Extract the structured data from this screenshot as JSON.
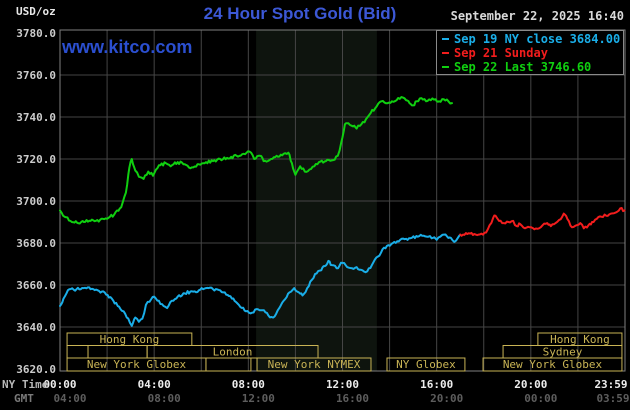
{
  "header": {
    "units": "USD/oz",
    "title": "24 Hour Spot Gold (Bid)",
    "datetime": "September 22, 2025 16:40",
    "watermark": "www.kitco.com"
  },
  "legend": {
    "items": [
      {
        "label": "Sep 19 NY close 3684.00",
        "color": "#1aaee8"
      },
      {
        "label": "Sep 21 Sunday",
        "color": "#f21d1d"
      },
      {
        "label": "Sep 22 Last 3746.60",
        "color": "#10cf10"
      }
    ]
  },
  "axes": {
    "ny_row_label": "NY Time",
    "gmt_row_label": "GMT",
    "y_ticks": [
      {
        "v": 3780,
        "label": "3780.0"
      },
      {
        "v": 3760,
        "label": "3760.0"
      },
      {
        "v": 3740,
        "label": "3740.0"
      },
      {
        "v": 3720,
        "label": "3720.0"
      },
      {
        "v": 3700,
        "label": "3700.0"
      },
      {
        "v": 3680,
        "label": "3680.0"
      },
      {
        "v": 3660,
        "label": "3660.0"
      },
      {
        "v": 3640,
        "label": "3640.0"
      },
      {
        "v": 3620,
        "label": "3620.0"
      }
    ],
    "x_ticks": [
      {
        "h": 0,
        "ny": "00:00",
        "gmt": "04:00"
      },
      {
        "h": 4,
        "ny": "04:00",
        "gmt": "08:00"
      },
      {
        "h": 8,
        "ny": "08:00",
        "gmt": "12:00"
      },
      {
        "h": 12,
        "ny": "12:00",
        "gmt": "16:00"
      },
      {
        "h": 16,
        "ny": "16:00",
        "gmt": "20:00"
      },
      {
        "h": 20,
        "ny": "20:00",
        "gmt": "00:00"
      },
      {
        "h": 23.983,
        "ny": "23:59",
        "gmt": "03:59"
      }
    ]
  },
  "sessions": {
    "color": "#c9b455",
    "rows": [
      {
        "boxes": [
          {
            "label": "Hong Kong",
            "start": 0.3,
            "end": 5.6
          },
          {
            "label": "Hong Kong",
            "start": 20.3,
            "end": 23.87
          }
        ]
      },
      {
        "boxes": [
          {
            "label": "",
            "start": 0.3,
            "end": 1.19
          },
          {
            "label": "",
            "start": 1.19,
            "end": 3.7
          },
          {
            "label": "London",
            "start": 3.7,
            "end": 10.96
          },
          {
            "label": "Sydney",
            "start": 18.82,
            "end": 23.87
          }
        ]
      },
      {
        "boxes": [
          {
            "label": "New York Globex",
            "start": 0.3,
            "end": 6.2
          },
          {
            "label": "",
            "start": 6.2,
            "end": 8.11
          },
          {
            "label": "New York NYMEX",
            "start": 8.37,
            "end": 13.21
          },
          {
            "label": "NY Globex",
            "start": 13.89,
            "end": 17.2
          },
          {
            "label": "New York Globex",
            "start": 17.97,
            "end": 23.87
          }
        ]
      }
    ]
  },
  "chart_data": {
    "type": "line",
    "title": "24 Hour Spot Gold (Bid)",
    "ylabel": "USD/oz",
    "xlabel": "NY Time",
    "ylim": [
      3620,
      3780
    ],
    "xlim_hours": [
      0,
      24
    ],
    "grid": true,
    "grid_color": "#454545",
    "border_color": "#7f7f7f",
    "background": "#000000",
    "nymex_band": {
      "start": 8.33,
      "end": 13.46,
      "color": "#0e140e"
    },
    "legend_position": "top-right",
    "series": [
      {
        "name": "Sep 19 NY close",
        "color": "#1aaee8",
        "close": 3684.0,
        "points": [
          [
            0,
            3650
          ],
          [
            0.15,
            3653.5
          ],
          [
            0.4,
            3658
          ],
          [
            0.7,
            3658
          ],
          [
            1.0,
            3658.5
          ],
          [
            1.3,
            3658
          ],
          [
            1.6,
            3657.5
          ],
          [
            1.9,
            3656.5
          ],
          [
            2.2,
            3653.5
          ],
          [
            2.45,
            3650
          ],
          [
            2.7,
            3647.5
          ],
          [
            2.9,
            3644
          ],
          [
            3.05,
            3640.5
          ],
          [
            3.2,
            3644.5
          ],
          [
            3.35,
            3642.5
          ],
          [
            3.5,
            3644
          ],
          [
            3.65,
            3650.5
          ],
          [
            3.8,
            3652
          ],
          [
            4.0,
            3654.5
          ],
          [
            4.2,
            3652.5
          ],
          [
            4.4,
            3650
          ],
          [
            4.55,
            3649
          ],
          [
            4.75,
            3652.5
          ],
          [
            5.0,
            3654.5
          ],
          [
            5.3,
            3656
          ],
          [
            5.6,
            3657
          ],
          [
            5.9,
            3657.5
          ],
          [
            6.2,
            3658.5
          ],
          [
            6.5,
            3658
          ],
          [
            6.8,
            3657.5
          ],
          [
            7.0,
            3656.5
          ],
          [
            7.3,
            3653.5
          ],
          [
            7.6,
            3650.5
          ],
          [
            7.9,
            3647.5
          ],
          [
            8.1,
            3646.5
          ],
          [
            8.35,
            3648.5
          ],
          [
            8.6,
            3648
          ],
          [
            8.85,
            3645.5
          ],
          [
            9.05,
            3644.5
          ],
          [
            9.25,
            3648
          ],
          [
            9.5,
            3652.5
          ],
          [
            9.75,
            3656.5
          ],
          [
            9.95,
            3658.5
          ],
          [
            10.15,
            3656.5
          ],
          [
            10.3,
            3655
          ],
          [
            10.5,
            3658.5
          ],
          [
            10.7,
            3662.5
          ],
          [
            10.9,
            3665.5
          ],
          [
            11.1,
            3667
          ],
          [
            11.25,
            3669
          ],
          [
            11.4,
            3671.5
          ],
          [
            11.55,
            3669.5
          ],
          [
            11.75,
            3668
          ],
          [
            12.0,
            3670.5
          ],
          [
            12.2,
            3668.5
          ],
          [
            12.4,
            3668
          ],
          [
            12.6,
            3668.5
          ],
          [
            12.85,
            3667
          ],
          [
            13.05,
            3666.5
          ],
          [
            13.25,
            3669.5
          ],
          [
            13.5,
            3673.5
          ],
          [
            13.7,
            3677
          ],
          [
            13.95,
            3679
          ],
          [
            14.2,
            3680.5
          ],
          [
            14.45,
            3681.5
          ],
          [
            14.7,
            3682
          ],
          [
            14.95,
            3682.5
          ],
          [
            15.2,
            3683
          ],
          [
            15.45,
            3683.5
          ],
          [
            15.65,
            3683
          ],
          [
            15.85,
            3682.5
          ],
          [
            16.0,
            3681.5
          ],
          [
            16.15,
            3683
          ],
          [
            16.3,
            3684
          ],
          [
            16.45,
            3683
          ],
          [
            16.6,
            3682.5
          ],
          [
            16.75,
            3680.5
          ],
          [
            16.9,
            3682.5
          ],
          [
            17.0,
            3684
          ]
        ]
      },
      {
        "name": "Sep 21 Sunday",
        "color": "#f21d1d",
        "points": [
          [
            17.0,
            3684
          ],
          [
            17.3,
            3684.3
          ],
          [
            17.6,
            3684.3
          ],
          [
            17.9,
            3684.5
          ],
          [
            18.1,
            3685
          ],
          [
            18.25,
            3688.5
          ],
          [
            18.4,
            3692
          ],
          [
            18.5,
            3693
          ],
          [
            18.65,
            3690.5
          ],
          [
            18.85,
            3689.5
          ],
          [
            19.05,
            3690
          ],
          [
            19.25,
            3690.5
          ],
          [
            19.4,
            3688
          ],
          [
            19.55,
            3689
          ],
          [
            19.75,
            3687
          ],
          [
            19.95,
            3687.5
          ],
          [
            20.15,
            3686.5
          ],
          [
            20.35,
            3687
          ],
          [
            20.5,
            3688.5
          ],
          [
            20.7,
            3689.5
          ],
          [
            20.85,
            3688
          ],
          [
            21.05,
            3689.5
          ],
          [
            21.2,
            3691
          ],
          [
            21.4,
            3694
          ],
          [
            21.55,
            3691.5
          ],
          [
            21.75,
            3687.5
          ],
          [
            21.95,
            3688.5
          ],
          [
            22.1,
            3689.5
          ],
          [
            22.25,
            3687
          ],
          [
            22.45,
            3688.5
          ],
          [
            22.6,
            3690
          ],
          [
            22.8,
            3691.5
          ],
          [
            23.0,
            3692.5
          ],
          [
            23.2,
            3693
          ],
          [
            23.4,
            3694
          ],
          [
            23.6,
            3694.5
          ],
          [
            23.8,
            3696.5
          ],
          [
            23.98,
            3695.5
          ]
        ]
      },
      {
        "name": "Sep 22 Last",
        "color": "#10cf10",
        "last": 3746.6,
        "points": [
          [
            0,
            3695.5
          ],
          [
            0.2,
            3692.5
          ],
          [
            0.5,
            3690
          ],
          [
            0.9,
            3690
          ],
          [
            1.3,
            3690.5
          ],
          [
            1.7,
            3691
          ],
          [
            2.0,
            3691.5
          ],
          [
            2.3,
            3693.5
          ],
          [
            2.6,
            3697
          ],
          [
            2.8,
            3704
          ],
          [
            2.95,
            3716
          ],
          [
            3.05,
            3720
          ],
          [
            3.2,
            3714.5
          ],
          [
            3.35,
            3711.5
          ],
          [
            3.55,
            3710.5
          ],
          [
            3.75,
            3714
          ],
          [
            3.95,
            3712
          ],
          [
            4.2,
            3717
          ],
          [
            4.5,
            3718
          ],
          [
            4.7,
            3716.5
          ],
          [
            5.0,
            3718.5
          ],
          [
            5.3,
            3717.5
          ],
          [
            5.6,
            3716
          ],
          [
            5.9,
            3717.5
          ],
          [
            6.2,
            3718.5
          ],
          [
            6.5,
            3719
          ],
          [
            6.8,
            3720
          ],
          [
            7.1,
            3720.5
          ],
          [
            7.5,
            3721.5
          ],
          [
            7.8,
            3722.5
          ],
          [
            8.05,
            3723.5
          ],
          [
            8.25,
            3720
          ],
          [
            8.5,
            3721.5
          ],
          [
            8.65,
            3719
          ],
          [
            8.9,
            3719.5
          ],
          [
            9.2,
            3721.5
          ],
          [
            9.5,
            3722.5
          ],
          [
            9.7,
            3723
          ],
          [
            9.85,
            3718
          ],
          [
            10.0,
            3712.5
          ],
          [
            10.2,
            3716.5
          ],
          [
            10.4,
            3714
          ],
          [
            10.6,
            3715
          ],
          [
            10.8,
            3716.5
          ],
          [
            11.0,
            3718.5
          ],
          [
            11.3,
            3719
          ],
          [
            11.6,
            3719.5
          ],
          [
            11.8,
            3721.5
          ],
          [
            11.95,
            3728
          ],
          [
            12.1,
            3736.5
          ],
          [
            12.25,
            3737
          ],
          [
            12.45,
            3735.5
          ],
          [
            12.6,
            3734.5
          ],
          [
            12.8,
            3736.5
          ],
          [
            13.0,
            3739
          ],
          [
            13.2,
            3742
          ],
          [
            13.45,
            3745
          ],
          [
            13.65,
            3747.5
          ],
          [
            13.85,
            3746.5
          ],
          [
            14.1,
            3747.5
          ],
          [
            14.3,
            3748
          ],
          [
            14.5,
            3749.5
          ],
          [
            14.7,
            3748
          ],
          [
            14.85,
            3746.5
          ],
          [
            15.0,
            3745.5
          ],
          [
            15.15,
            3747.5
          ],
          [
            15.35,
            3749
          ],
          [
            15.55,
            3747.5
          ],
          [
            15.75,
            3748
          ],
          [
            15.95,
            3748.5
          ],
          [
            16.1,
            3747.5
          ],
          [
            16.3,
            3748.5
          ],
          [
            16.5,
            3747.5
          ],
          [
            16.65,
            3746.6
          ]
        ]
      }
    ]
  }
}
